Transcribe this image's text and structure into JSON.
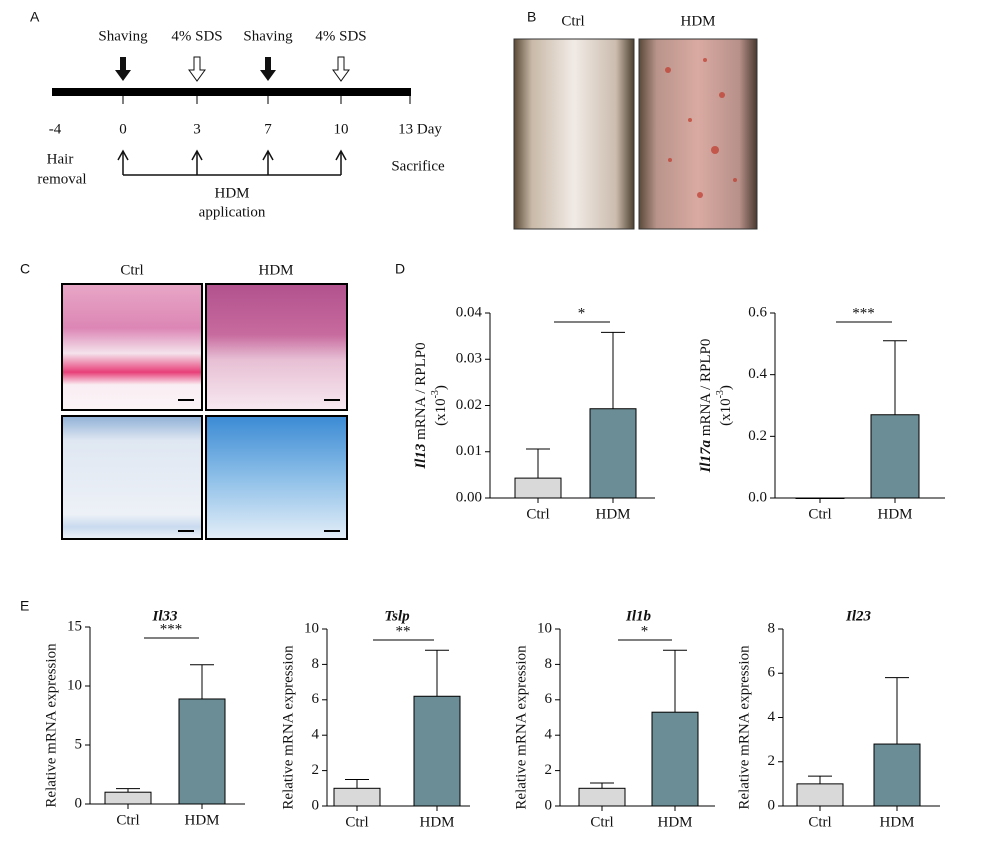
{
  "panel_labels": [
    "A",
    "B",
    "C",
    "D",
    "E"
  ],
  "timeline": {
    "treatments": [
      "Shaving",
      "4% SDS",
      "Shaving",
      "4% SDS"
    ],
    "days": [
      "-4",
      "0",
      "3",
      "7",
      "10",
      "13 Day"
    ],
    "start_label": [
      "Hair",
      "removal"
    ],
    "application_label": [
      "HDM",
      "application"
    ],
    "end_label": "Sacrifice"
  },
  "photos_b": [
    "Ctrl",
    "HDM"
  ],
  "photos_c": [
    "Ctrl",
    "HDM"
  ],
  "chart_data": [
    {
      "type": "bar",
      "y_label": {
        "gene": "Il13",
        "text": " mRNA / RPLP0",
        "scale": "(x10",
        "exponent": "-3",
        "close": ")"
      },
      "categories": [
        "Ctrl",
        "HDM"
      ],
      "values": [
        0.0043,
        0.0193
      ],
      "errors": [
        0.0063,
        0.0165
      ],
      "colors": [
        "#d9d9d9",
        "#6b8e96"
      ],
      "ylim": [
        0,
        0.04
      ],
      "yticks": [
        {
          "value": 0,
          "label": "0.00"
        },
        0.01,
        0.02,
        0.03,
        0.04
      ],
      "significance": "*"
    },
    {
      "type": "bar",
      "y_label": {
        "gene": "Il17a",
        "text": " mRNA / RPLP0",
        "scale": "(x10",
        "exponent": "-3",
        "close": ")"
      },
      "categories": [
        "Ctrl",
        "HDM"
      ],
      "values": [
        0,
        0.27
      ],
      "errors": [
        0,
        0.24
      ],
      "colors": [
        "#d9d9d9",
        "#6b8e96"
      ],
      "ylim": [
        0,
        0.6
      ],
      "yticks": [
        {
          "value": 0,
          "label": "0.0"
        },
        0.2,
        0.4,
        0.6
      ],
      "significance": "***"
    },
    {
      "type": "bar",
      "title": "Il33",
      "y_label": "Relative mRNA expression",
      "categories": [
        "Ctrl",
        "HDM"
      ],
      "values": [
        1.0,
        8.9
      ],
      "errors": [
        0.3,
        2.9
      ],
      "colors": [
        "#d9d9d9",
        "#6b8e96"
      ],
      "ylim": [
        0,
        15
      ],
      "yticks": [
        0,
        5,
        10,
        15
      ],
      "significance": "***"
    },
    {
      "type": "bar",
      "title": "Tslp",
      "y_label": "Relative mRNA expression",
      "categories": [
        "Ctrl",
        "HDM"
      ],
      "values": [
        1.0,
        6.2
      ],
      "errors": [
        0.5,
        2.6
      ],
      "colors": [
        "#d9d9d9",
        "#6b8e96"
      ],
      "ylim": [
        0,
        10
      ],
      "yticks": [
        0,
        2,
        4,
        6,
        8,
        10
      ],
      "significance": "**"
    },
    {
      "type": "bar",
      "title": "Il1b",
      "y_label": "Relative mRNA expression",
      "categories": [
        "Ctrl",
        "HDM"
      ],
      "values": [
        1.0,
        5.3
      ],
      "errors": [
        0.3,
        3.5
      ],
      "colors": [
        "#d9d9d9",
        "#6b8e96"
      ],
      "ylim": [
        0,
        10
      ],
      "yticks": [
        0,
        2,
        4,
        6,
        8,
        10
      ],
      "significance": "*"
    },
    {
      "type": "bar",
      "title": "Il23",
      "y_label": "Relative mRNA expression",
      "categories": [
        "Ctrl",
        "HDM"
      ],
      "values": [
        1.0,
        2.8
      ],
      "errors": [
        0.35,
        3.0
      ],
      "colors": [
        "#d9d9d9",
        "#6b8e96"
      ],
      "ylim": [
        0,
        8
      ],
      "yticks": [
        0,
        2,
        4,
        6,
        8
      ]
    }
  ]
}
